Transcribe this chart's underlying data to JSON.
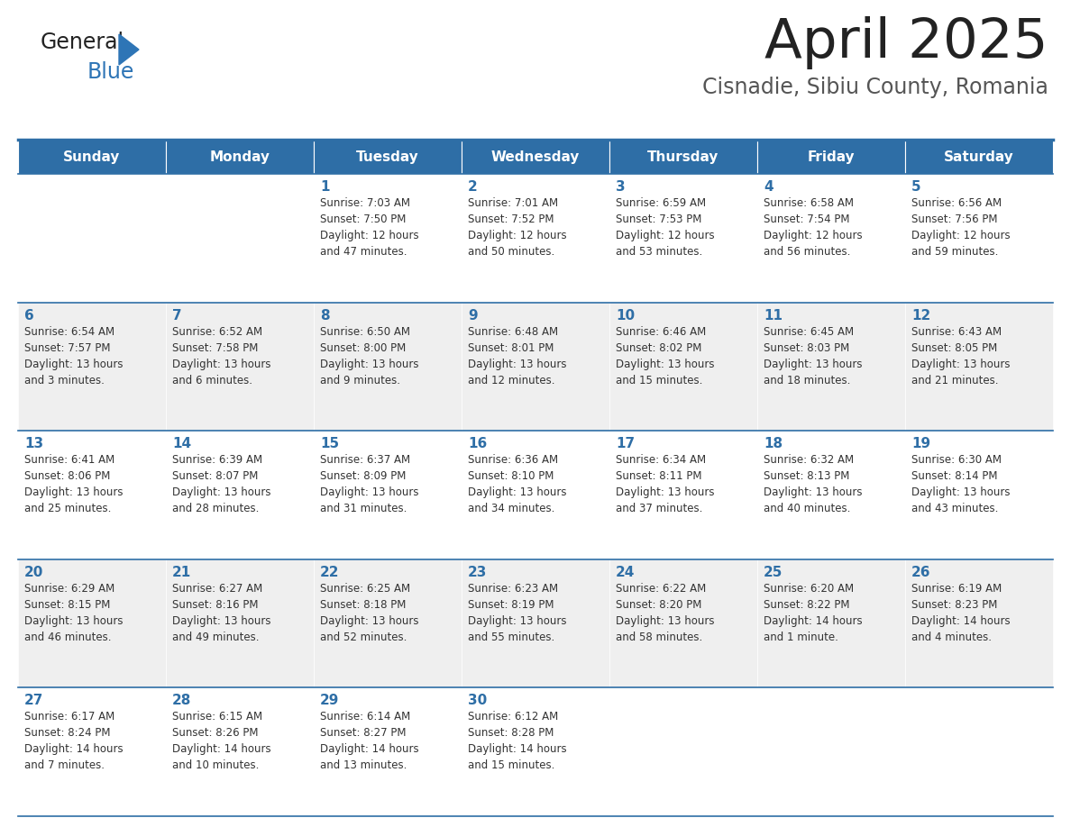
{
  "title": "April 2025",
  "subtitle": "Cisnadie, Sibiu County, Romania",
  "days_of_week": [
    "Sunday",
    "Monday",
    "Tuesday",
    "Wednesday",
    "Thursday",
    "Friday",
    "Saturday"
  ],
  "header_bg": "#2E6EA6",
  "header_text": "#FFFFFF",
  "row_bg_odd": "#FFFFFF",
  "row_bg_even": "#EFEFEF",
  "border_color": "#2E6EA6",
  "day_number_color": "#2E6EA6",
  "text_color": "#333333",
  "title_color": "#222222",
  "subtitle_color": "#555555",
  "logo_color1": "#222222",
  "logo_color2": "#2E75B6",
  "weeks": [
    [
      {
        "day": "",
        "info": ""
      },
      {
        "day": "",
        "info": ""
      },
      {
        "day": "1",
        "info": "Sunrise: 7:03 AM\nSunset: 7:50 PM\nDaylight: 12 hours\nand 47 minutes."
      },
      {
        "day": "2",
        "info": "Sunrise: 7:01 AM\nSunset: 7:52 PM\nDaylight: 12 hours\nand 50 minutes."
      },
      {
        "day": "3",
        "info": "Sunrise: 6:59 AM\nSunset: 7:53 PM\nDaylight: 12 hours\nand 53 minutes."
      },
      {
        "day": "4",
        "info": "Sunrise: 6:58 AM\nSunset: 7:54 PM\nDaylight: 12 hours\nand 56 minutes."
      },
      {
        "day": "5",
        "info": "Sunrise: 6:56 AM\nSunset: 7:56 PM\nDaylight: 12 hours\nand 59 minutes."
      }
    ],
    [
      {
        "day": "6",
        "info": "Sunrise: 6:54 AM\nSunset: 7:57 PM\nDaylight: 13 hours\nand 3 minutes."
      },
      {
        "day": "7",
        "info": "Sunrise: 6:52 AM\nSunset: 7:58 PM\nDaylight: 13 hours\nand 6 minutes."
      },
      {
        "day": "8",
        "info": "Sunrise: 6:50 AM\nSunset: 8:00 PM\nDaylight: 13 hours\nand 9 minutes."
      },
      {
        "day": "9",
        "info": "Sunrise: 6:48 AM\nSunset: 8:01 PM\nDaylight: 13 hours\nand 12 minutes."
      },
      {
        "day": "10",
        "info": "Sunrise: 6:46 AM\nSunset: 8:02 PM\nDaylight: 13 hours\nand 15 minutes."
      },
      {
        "day": "11",
        "info": "Sunrise: 6:45 AM\nSunset: 8:03 PM\nDaylight: 13 hours\nand 18 minutes."
      },
      {
        "day": "12",
        "info": "Sunrise: 6:43 AM\nSunset: 8:05 PM\nDaylight: 13 hours\nand 21 minutes."
      }
    ],
    [
      {
        "day": "13",
        "info": "Sunrise: 6:41 AM\nSunset: 8:06 PM\nDaylight: 13 hours\nand 25 minutes."
      },
      {
        "day": "14",
        "info": "Sunrise: 6:39 AM\nSunset: 8:07 PM\nDaylight: 13 hours\nand 28 minutes."
      },
      {
        "day": "15",
        "info": "Sunrise: 6:37 AM\nSunset: 8:09 PM\nDaylight: 13 hours\nand 31 minutes."
      },
      {
        "day": "16",
        "info": "Sunrise: 6:36 AM\nSunset: 8:10 PM\nDaylight: 13 hours\nand 34 minutes."
      },
      {
        "day": "17",
        "info": "Sunrise: 6:34 AM\nSunset: 8:11 PM\nDaylight: 13 hours\nand 37 minutes."
      },
      {
        "day": "18",
        "info": "Sunrise: 6:32 AM\nSunset: 8:13 PM\nDaylight: 13 hours\nand 40 minutes."
      },
      {
        "day": "19",
        "info": "Sunrise: 6:30 AM\nSunset: 8:14 PM\nDaylight: 13 hours\nand 43 minutes."
      }
    ],
    [
      {
        "day": "20",
        "info": "Sunrise: 6:29 AM\nSunset: 8:15 PM\nDaylight: 13 hours\nand 46 minutes."
      },
      {
        "day": "21",
        "info": "Sunrise: 6:27 AM\nSunset: 8:16 PM\nDaylight: 13 hours\nand 49 minutes."
      },
      {
        "day": "22",
        "info": "Sunrise: 6:25 AM\nSunset: 8:18 PM\nDaylight: 13 hours\nand 52 minutes."
      },
      {
        "day": "23",
        "info": "Sunrise: 6:23 AM\nSunset: 8:19 PM\nDaylight: 13 hours\nand 55 minutes."
      },
      {
        "day": "24",
        "info": "Sunrise: 6:22 AM\nSunset: 8:20 PM\nDaylight: 13 hours\nand 58 minutes."
      },
      {
        "day": "25",
        "info": "Sunrise: 6:20 AM\nSunset: 8:22 PM\nDaylight: 14 hours\nand 1 minute."
      },
      {
        "day": "26",
        "info": "Sunrise: 6:19 AM\nSunset: 8:23 PM\nDaylight: 14 hours\nand 4 minutes."
      }
    ],
    [
      {
        "day": "27",
        "info": "Sunrise: 6:17 AM\nSunset: 8:24 PM\nDaylight: 14 hours\nand 7 minutes."
      },
      {
        "day": "28",
        "info": "Sunrise: 6:15 AM\nSunset: 8:26 PM\nDaylight: 14 hours\nand 10 minutes."
      },
      {
        "day": "29",
        "info": "Sunrise: 6:14 AM\nSunset: 8:27 PM\nDaylight: 14 hours\nand 13 minutes."
      },
      {
        "day": "30",
        "info": "Sunrise: 6:12 AM\nSunset: 8:28 PM\nDaylight: 14 hours\nand 15 minutes."
      },
      {
        "day": "",
        "info": ""
      },
      {
        "day": "",
        "info": ""
      },
      {
        "day": "",
        "info": ""
      }
    ]
  ]
}
